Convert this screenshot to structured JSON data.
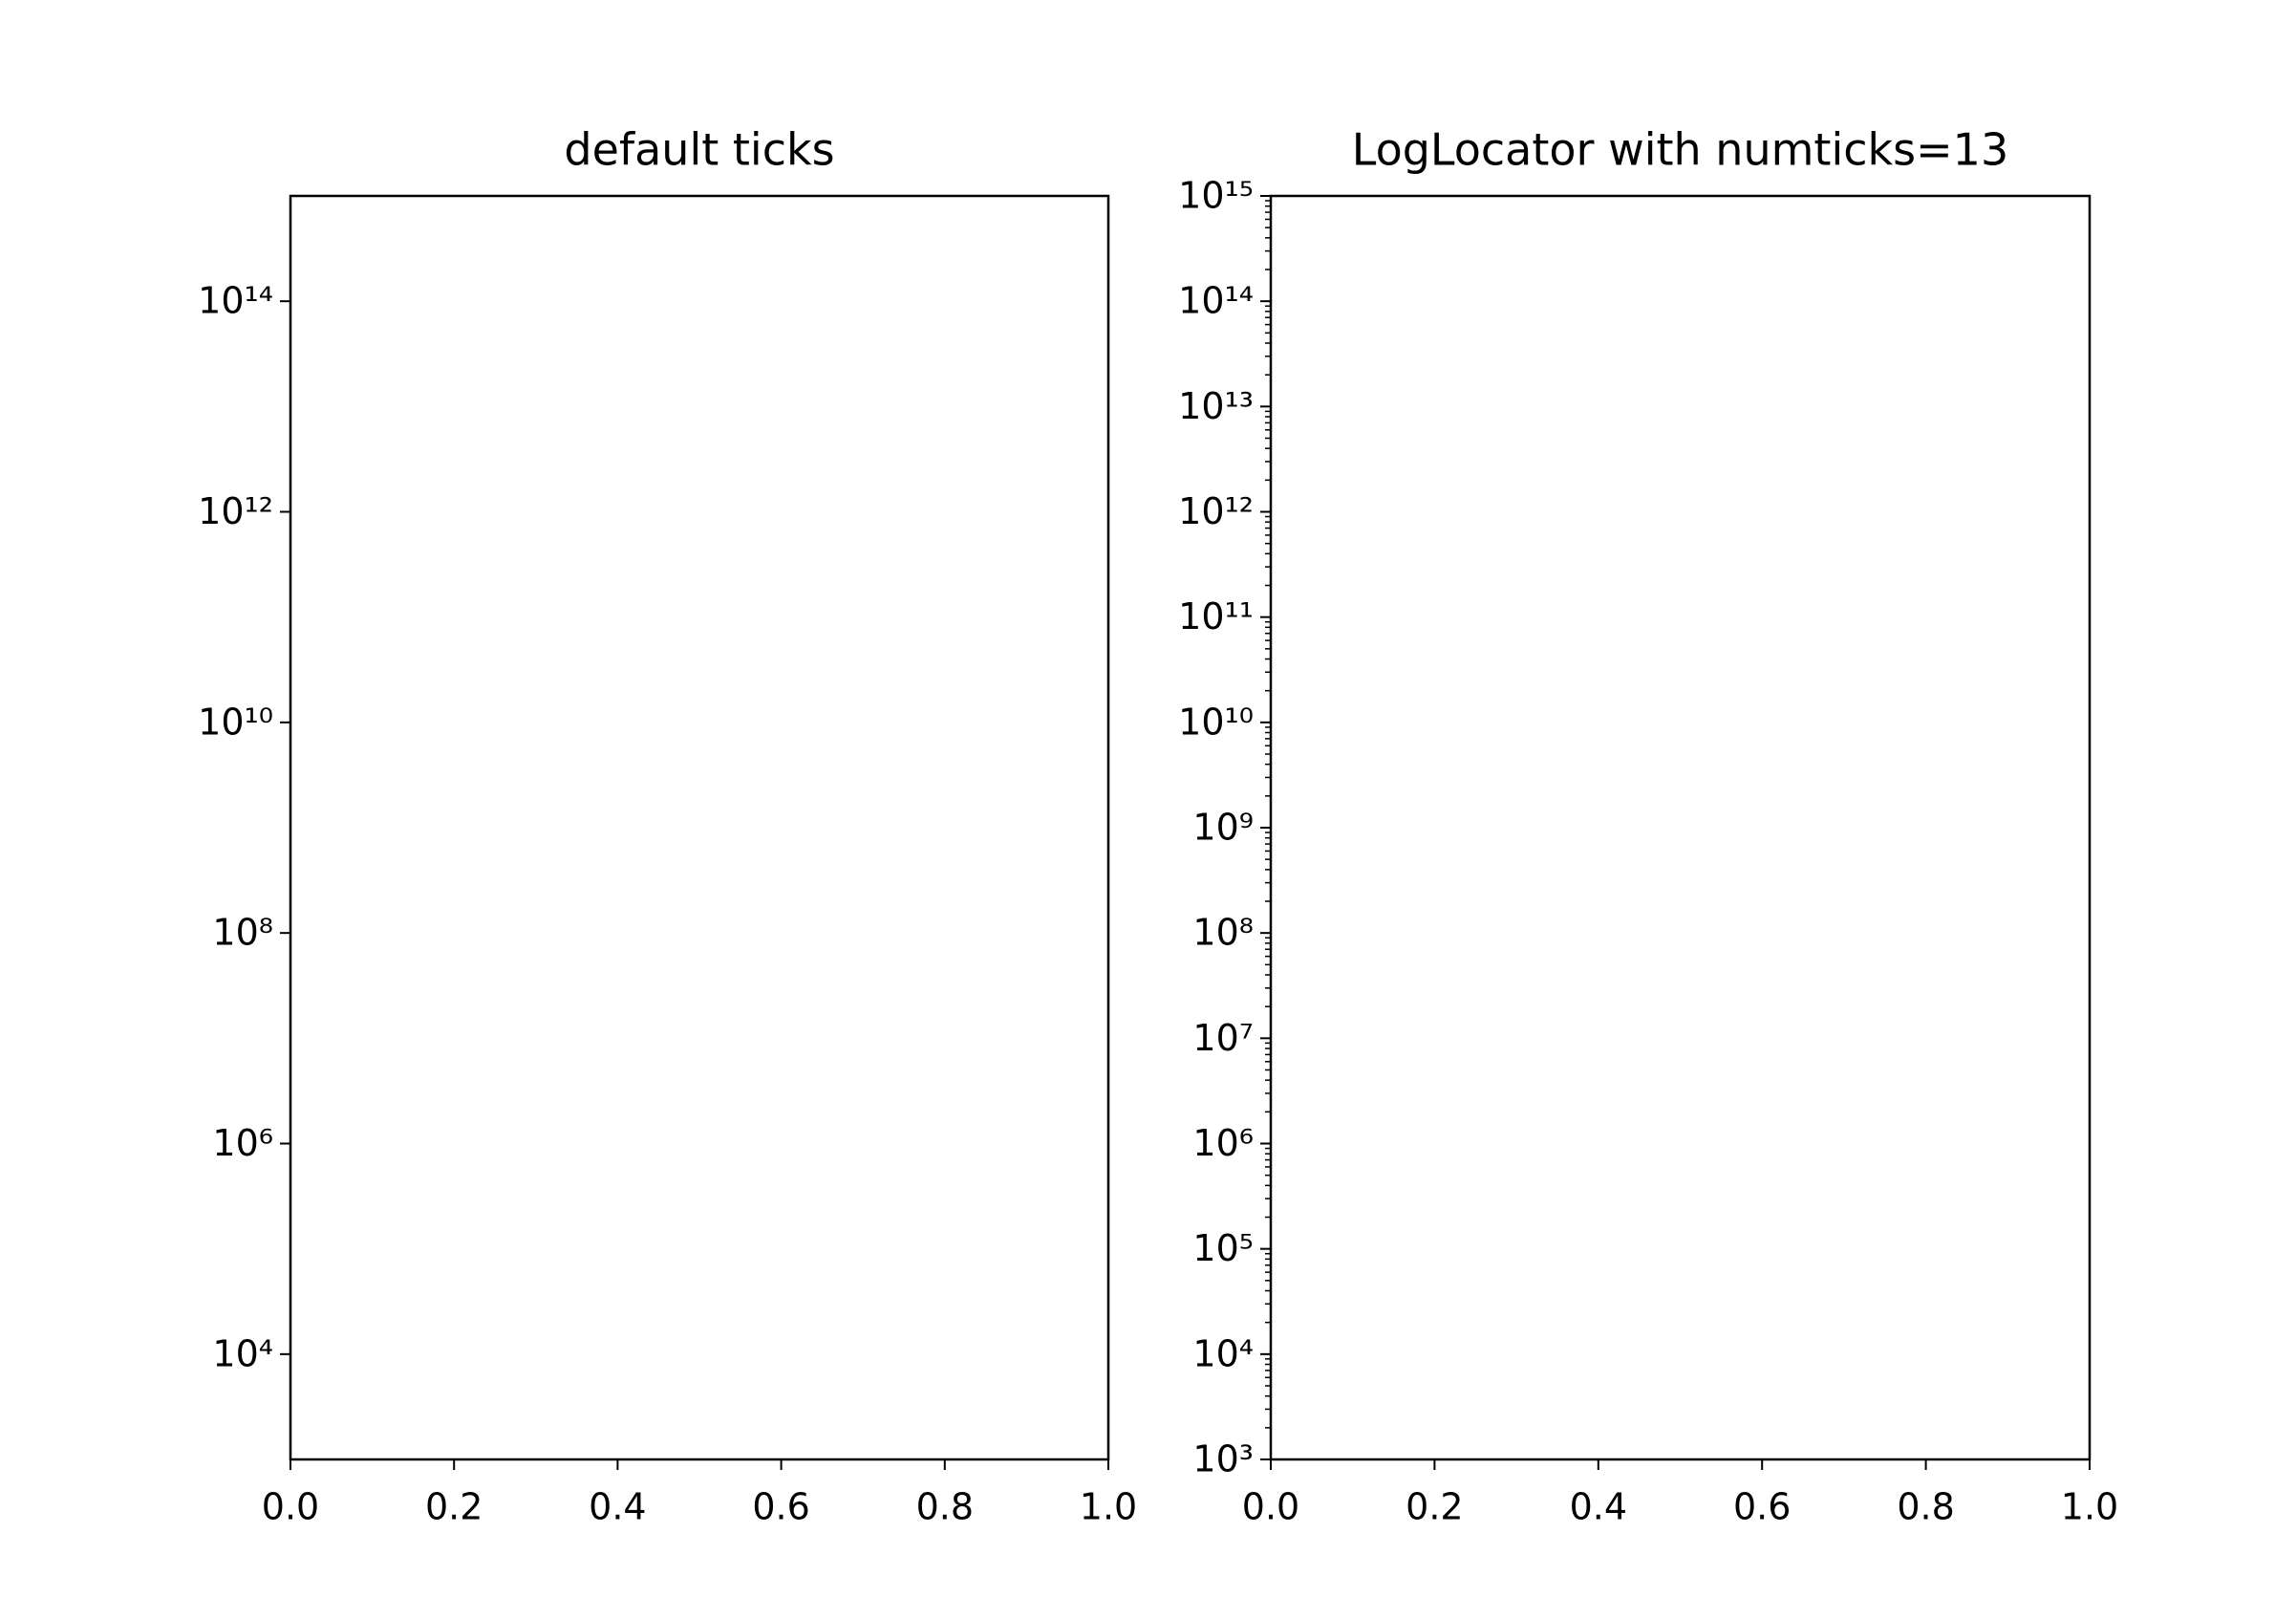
{
  "chart_data": [
    {
      "type": "line",
      "title": "default ticks",
      "yscale": "log",
      "minor_ticks": false,
      "xlim": [
        0,
        1
      ],
      "xticks": [
        {
          "value": 0,
          "label": "0.0"
        },
        0.2,
        0.4,
        0.6,
        0.8,
        {
          "value": 1,
          "label": "1.0"
        }
      ],
      "ylim": [
        1000,
        1000000000000000
      ],
      "yticks": [
        {
          "value": 10000,
          "label": "10⁴"
        },
        {
          "value": 1000000,
          "label": "10⁶"
        },
        {
          "value": 100000000,
          "label": "10⁸"
        },
        {
          "value": 10000000000,
          "label": "10¹⁰"
        },
        {
          "value": 1000000000000,
          "label": "10¹²"
        },
        {
          "value": 100000000000000,
          "label": "10¹⁴"
        }
      ]
    },
    {
      "type": "line",
      "title": "LogLocator with numticks=13",
      "yscale": "log",
      "minor_ticks": true,
      "xlim": [
        0,
        1
      ],
      "xticks": [
        {
          "value": 0,
          "label": "0.0"
        },
        0.2,
        0.4,
        0.6,
        0.8,
        {
          "value": 1,
          "label": "1.0"
        }
      ],
      "ylim": [
        1000,
        1000000000000000
      ],
      "yticks": [
        {
          "value": 1000,
          "label": "10³"
        },
        {
          "value": 10000,
          "label": "10⁴"
        },
        {
          "value": 100000,
          "label": "10⁵"
        },
        {
          "value": 1000000,
          "label": "10⁶"
        },
        {
          "value": 10000000,
          "label": "10⁷"
        },
        {
          "value": 100000000,
          "label": "10⁸"
        },
        {
          "value": 1000000000,
          "label": "10⁹"
        },
        {
          "value": 10000000000,
          "label": "10¹⁰"
        },
        {
          "value": 100000000000,
          "label": "10¹¹"
        },
        {
          "value": 1000000000000,
          "label": "10¹²"
        },
        {
          "value": 10000000000000,
          "label": "10¹³"
        },
        {
          "value": 100000000000000,
          "label": "10¹⁴"
        },
        {
          "value": 1000000000000000,
          "label": "10¹⁵"
        }
      ]
    }
  ]
}
